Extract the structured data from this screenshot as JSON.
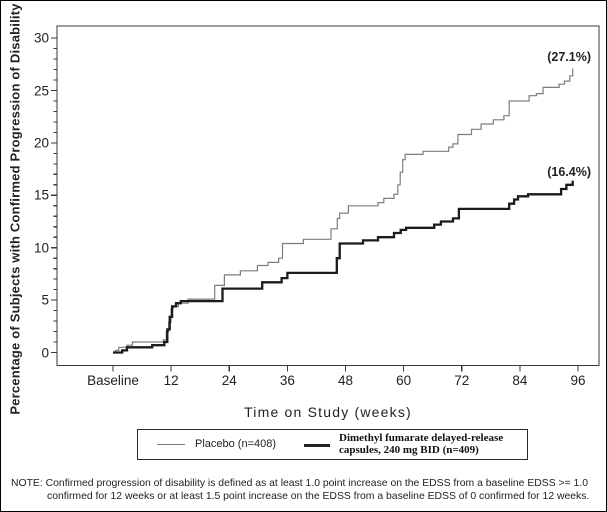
{
  "axis": {
    "y_title": "Percentage of Subjects with Confirmed Progression of Disability",
    "x_title": "Time on Study (weeks)"
  },
  "annotations": {
    "placebo_final": "(27.1%)",
    "dmf_final": "(16.4%)"
  },
  "legend": {
    "placebo_label": "Placebo (n=408)",
    "dmf_label_line1": "Dimethyl fumarate delayed-release",
    "dmf_label_line2": "capsules, 240 mg BID (n=409)"
  },
  "note": {
    "line1": "NOTE: Confirmed progression of disability is defined as at least 1.0 point increase on the EDSS from a baseline EDSS >= 1.0",
    "line2": "confirmed for 12 weeks or at least 1.5 point increase on the EDSS from a baseline EDSS of 0 confirmed for 12 weeks."
  },
  "chart_data": {
    "type": "line",
    "subtype": "kaplan-meier-step",
    "title": "",
    "xlabel": "Time on Study (weeks)",
    "ylabel": "Percentage of Subjects with Confirmed Progression of Disability",
    "xlim_weeks": [
      0,
      100
    ],
    "ylim": [
      0,
      31
    ],
    "grid": false,
    "legend_position": "bottom",
    "x_ticks": {
      "values_weeks": [
        0,
        12,
        24,
        36,
        48,
        60,
        72,
        84,
        96
      ],
      "labels": [
        "Baseline",
        "12",
        "24",
        "36",
        "48",
        "60",
        "72",
        "84",
        "96"
      ]
    },
    "y_ticks": {
      "values": [
        0,
        5,
        10,
        15,
        20,
        25,
        30
      ],
      "minor_interval": 1
    },
    "series": [
      {
        "name": "Placebo (n=408)",
        "color": "#7d7d7d",
        "stroke_width": 1.2,
        "final_value_label": "(27.1%)",
        "steps_week_pct": [
          [
            0,
            0
          ],
          [
            0.5,
            0.2
          ],
          [
            1.2,
            0.5
          ],
          [
            2.9,
            0.7
          ],
          [
            4,
            1.0
          ],
          [
            10.4,
            1.2
          ],
          [
            11,
            2.0
          ],
          [
            11.5,
            2.9
          ],
          [
            12,
            4.2
          ],
          [
            12.4,
            4.4
          ],
          [
            13.5,
            4.7
          ],
          [
            15.5,
            5.1
          ],
          [
            21,
            6.4
          ],
          [
            23,
            7.4
          ],
          [
            26.3,
            7.8
          ],
          [
            29.8,
            8.3
          ],
          [
            32,
            8.6
          ],
          [
            34.2,
            9.0
          ],
          [
            35,
            10.4
          ],
          [
            39.3,
            10.8
          ],
          [
            45,
            11.8
          ],
          [
            46.3,
            12.8
          ],
          [
            46.8,
            13.3
          ],
          [
            48.6,
            14.0
          ],
          [
            54.7,
            14.3
          ],
          [
            55.9,
            14.7
          ],
          [
            58,
            15.1
          ],
          [
            58.8,
            16.0
          ],
          [
            59.3,
            17.2
          ],
          [
            59.8,
            18.4
          ],
          [
            60.3,
            18.9
          ],
          [
            64,
            19.2
          ],
          [
            69.3,
            19.6
          ],
          [
            70.2,
            19.9
          ],
          [
            71.2,
            20.8
          ],
          [
            74,
            21.3
          ],
          [
            76,
            21.8
          ],
          [
            78.5,
            22.2
          ],
          [
            80.7,
            22.6
          ],
          [
            81.8,
            24.0
          ],
          [
            85.9,
            24.5
          ],
          [
            87.4,
            24.7
          ],
          [
            88.8,
            25.3
          ],
          [
            92.1,
            25.6
          ],
          [
            93.2,
            25.9
          ],
          [
            94.3,
            26.4
          ],
          [
            94.9,
            27.1
          ]
        ]
      },
      {
        "name": "Dimethyl fumarate delayed-release capsules, 240 mg BID (n=409)",
        "color": "#1b1b1b",
        "stroke_width": 2.3,
        "final_value_label": "(16.4%)",
        "steps_week_pct": [
          [
            0,
            0
          ],
          [
            1.9,
            0.2
          ],
          [
            2.9,
            0.5
          ],
          [
            8.1,
            0.7
          ],
          [
            10.6,
            1.0
          ],
          [
            11.2,
            2.2
          ],
          [
            11.7,
            3.4
          ],
          [
            12.2,
            4.4
          ],
          [
            13,
            4.7
          ],
          [
            14,
            4.9
          ],
          [
            22.6,
            6.1
          ],
          [
            30.8,
            6.7
          ],
          [
            34.8,
            7.1
          ],
          [
            36,
            7.6
          ],
          [
            46.2,
            9.0
          ],
          [
            46.8,
            10.4
          ],
          [
            51.6,
            10.7
          ],
          [
            54.7,
            11.0
          ],
          [
            58,
            11.4
          ],
          [
            59.4,
            11.7
          ],
          [
            60.5,
            11.9
          ],
          [
            66.3,
            12.2
          ],
          [
            67.7,
            12.5
          ],
          [
            70.2,
            12.8
          ],
          [
            71.4,
            13.7
          ],
          [
            81.8,
            14.2
          ],
          [
            82.8,
            14.6
          ],
          [
            83.6,
            14.9
          ],
          [
            85.7,
            15.1
          ],
          [
            92.5,
            15.6
          ],
          [
            93.6,
            16.0
          ],
          [
            94.9,
            16.4
          ]
        ]
      }
    ]
  }
}
